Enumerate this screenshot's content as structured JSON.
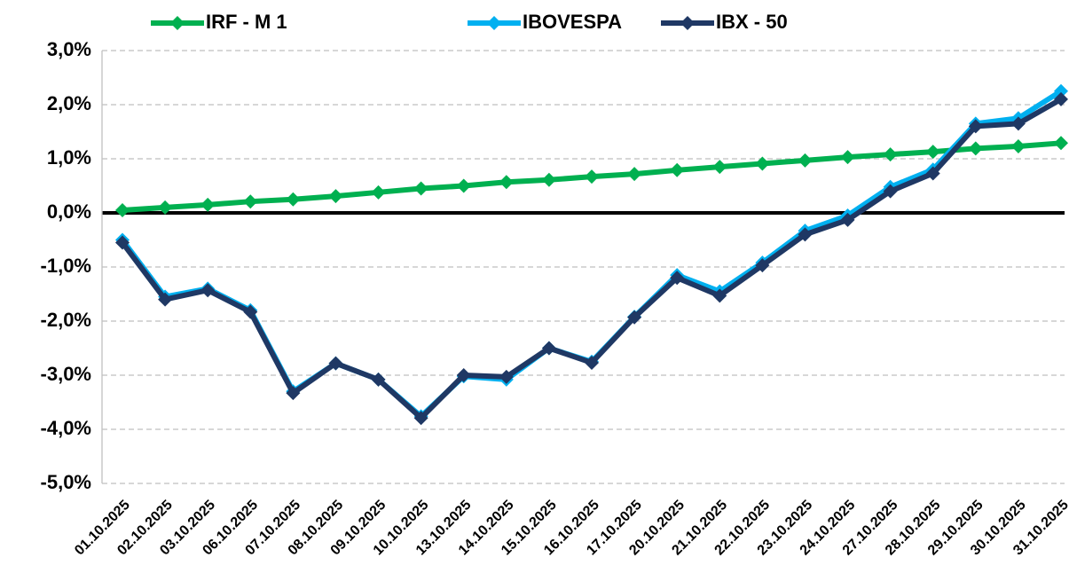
{
  "chart_data": {
    "type": "line",
    "categories": [
      "01.10.2025",
      "02.10.2025",
      "03.10.2025",
      "06.10.2025",
      "07.10.2025",
      "08.10.2025",
      "09.10.2025",
      "10.10.2025",
      "13.10.2025",
      "14.10.2025",
      "15.10.2025",
      "16.10.2025",
      "17.10.2025",
      "20.10.2025",
      "21.10.2025",
      "22.10.2025",
      "23.10.2025",
      "24.10.2025",
      "27.10.2025",
      "28.10.2025",
      "29.10.2025",
      "30.10.2025",
      "31.10.2025"
    ],
    "series": [
      {
        "name": "IRF - M 1",
        "color": "#00b050",
        "values": [
          0.05,
          0.1,
          0.15,
          0.21,
          0.25,
          0.31,
          0.38,
          0.45,
          0.5,
          0.57,
          0.61,
          0.67,
          0.72,
          0.79,
          0.85,
          0.91,
          0.97,
          1.03,
          1.08,
          1.13,
          1.19,
          1.23,
          1.29
        ]
      },
      {
        "name": "IBOVESPA",
        "color": "#00b0f0",
        "values": [
          -0.5,
          -1.55,
          -1.4,
          -1.8,
          -3.3,
          -2.78,
          -3.08,
          -3.76,
          -3.02,
          -3.08,
          -2.5,
          -2.75,
          -1.92,
          -1.15,
          -1.45,
          -0.92,
          -0.33,
          -0.05,
          0.48,
          0.8,
          1.65,
          1.75,
          2.25
        ]
      },
      {
        "name": "IBX - 50",
        "color": "#1f3864",
        "values": [
          -0.55,
          -1.6,
          -1.43,
          -1.83,
          -3.33,
          -2.78,
          -3.08,
          -3.79,
          -3.0,
          -3.03,
          -2.5,
          -2.77,
          -1.93,
          -1.2,
          -1.53,
          -0.97,
          -0.4,
          -0.13,
          0.4,
          0.73,
          1.6,
          1.65,
          2.1
        ]
      }
    ],
    "ylim": [
      -5,
      3
    ],
    "yticks": [
      {
        "value": -5,
        "label": "-5,0%"
      },
      {
        "value": -4,
        "label": "-4,0%"
      },
      {
        "value": -3,
        "label": "-3,0%"
      },
      {
        "value": -2,
        "label": "-2,0%"
      },
      {
        "value": -1,
        "label": "-1,0%"
      },
      {
        "value": 0,
        "label": "0,0%"
      },
      {
        "value": 1,
        "label": "1,0%"
      },
      {
        "value": 2,
        "label": "2,0%"
      },
      {
        "value": 3,
        "label": "3,0%"
      }
    ],
    "grid": true,
    "legend": "top"
  }
}
